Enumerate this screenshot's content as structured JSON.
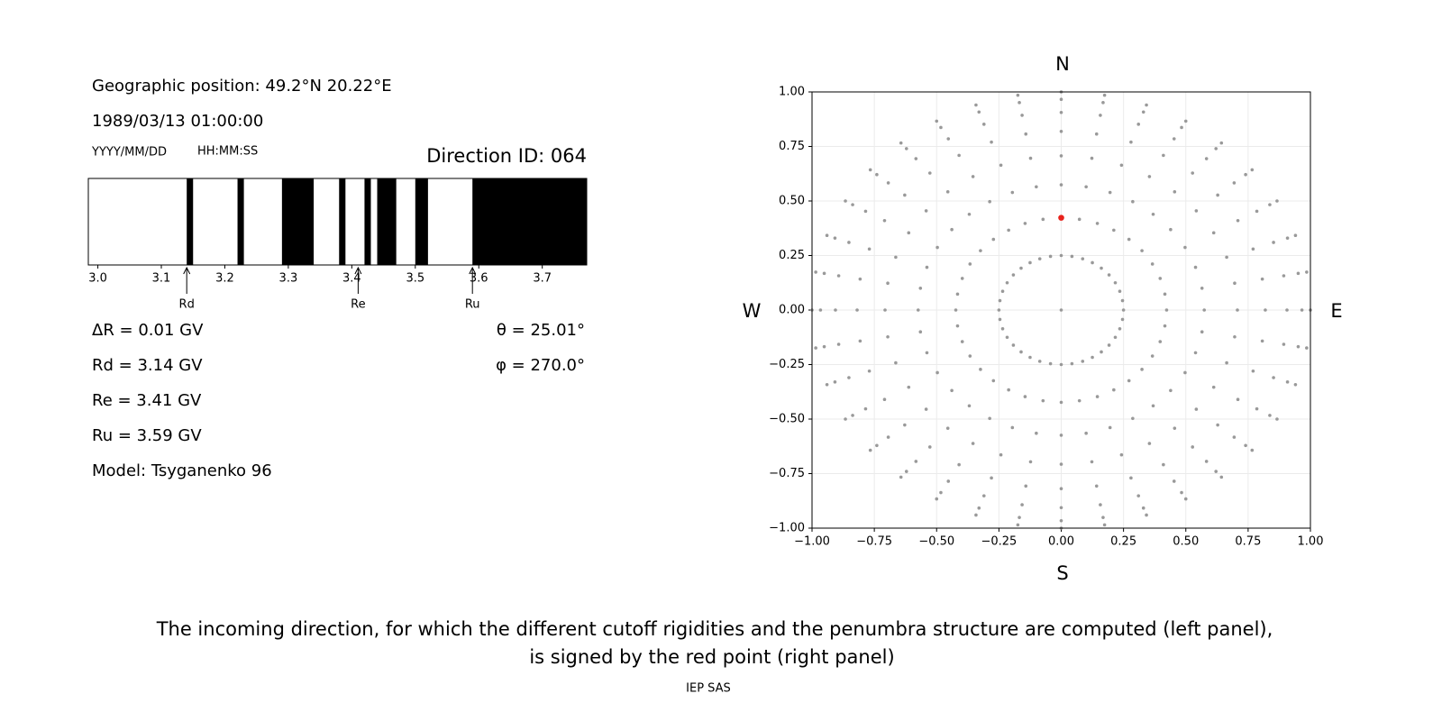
{
  "chart_data": [
    {
      "type": "penumbra",
      "info": {
        "position": "Geographic position: 49.2°N 20.22°E",
        "datetime": "1989/03/13 01:00:00",
        "date_format": "YYYY/MM/DD",
        "time_format": "HH:MM:SS",
        "direction": "Direction ID: 064",
        "delta_r": "ΔR = 0.01 GV",
        "theta": "θ = 25.01°",
        "phi": "φ = 270.0°",
        "rd": "Rd = 3.14 GV",
        "re": "Re = 3.41 GV",
        "ru": "Ru = 3.59 GV",
        "model": "Model: Tsyganenko 96"
      },
      "xlim": [
        2.985,
        3.77
      ],
      "xticks": [
        {
          "value": 3,
          "label": "3.0"
        },
        3.1,
        3.2,
        3.3,
        3.4,
        3.5,
        3.6,
        3.7
      ],
      "bands": [
        [
          3.14,
          3.15
        ],
        [
          3.22,
          3.23
        ],
        [
          3.29,
          3.34
        ],
        [
          3.38,
          3.39
        ],
        [
          3.42,
          3.43
        ],
        [
          3.44,
          3.47
        ],
        [
          3.5,
          3.52
        ],
        [
          3.59,
          3.77
        ]
      ],
      "band_color": "#000000",
      "markers": [
        {
          "label": "Rd",
          "value": 3.14
        },
        {
          "label": "Re",
          "value": 3.41
        },
        {
          "label": "Ru",
          "value": 3.59
        }
      ]
    },
    {
      "type": "scatter",
      "directions": {
        "north": "N",
        "south": "S",
        "west": "W",
        "east": "E"
      },
      "xlim": [
        -1,
        1
      ],
      "ylim": [
        -1,
        1
      ],
      "xticks": [
        {
          "value": -1,
          "label": "−1.00"
        },
        {
          "value": -0.75,
          "label": "−0.75"
        },
        {
          "value": -0.5,
          "label": "−0.50"
        },
        {
          "value": -0.25,
          "label": "−0.25"
        },
        {
          "value": 0,
          "label": "0.00"
        },
        0.25,
        {
          "value": 0.5,
          "label": "0.50"
        },
        0.75,
        {
          "value": 1,
          "label": "1.00"
        }
      ],
      "yticks": [
        {
          "value": -1,
          "label": "−1.00"
        },
        {
          "value": -0.75,
          "label": "−0.75"
        },
        {
          "value": -0.5,
          "label": "−0.50"
        },
        {
          "value": -0.25,
          "label": "−0.25"
        },
        {
          "value": 0,
          "label": "0.00"
        },
        0.25,
        {
          "value": 0.5,
          "label": "0.50"
        },
        0.75,
        {
          "value": 1,
          "label": "1.00"
        }
      ],
      "grid": true,
      "color": "#999999",
      "x": [
        0,
        0,
        0.043,
        0.086,
        0.125,
        0.161,
        0.192,
        0.217,
        0.235,
        0.246,
        0.25,
        0.246,
        0.235,
        0.217,
        0.192,
        0.161,
        0.125,
        0.086,
        0.043,
        0,
        -0.043,
        -0.086,
        -0.125,
        -0.161,
        -0.192,
        -0.217,
        -0.235,
        -0.246,
        -0.25,
        -0.246,
        -0.235,
        -0.217,
        -0.192,
        -0.161,
        -0.125,
        -0.086,
        -0.043,
        0,
        0.073,
        0.145,
        0.211,
        0.272,
        0.324,
        0.366,
        0.397,
        0.416,
        0.423,
        0.416,
        0.397,
        0.366,
        0.324,
        0.272,
        0.211,
        0.145,
        0.073,
        0,
        -0.073,
        -0.145,
        -0.211,
        -0.272,
        -0.324,
        -0.366,
        -0.397,
        -0.416,
        -0.423,
        -0.416,
        -0.397,
        -0.366,
        -0.324,
        -0.272,
        -0.211,
        -0.145,
        -0.073,
        0,
        0.1,
        0.196,
        0.287,
        0.369,
        0.439,
        0.497,
        0.539,
        0.565,
        0.574,
        0.565,
        0.539,
        0.497,
        0.439,
        0.369,
        0.287,
        0.196,
        0.1,
        0,
        -0.1,
        -0.196,
        -0.287,
        -0.369,
        -0.439,
        -0.497,
        -0.539,
        -0.565,
        -0.574,
        -0.565,
        -0.539,
        -0.497,
        -0.439,
        -0.369,
        -0.287,
        -0.196,
        -0.1,
        0,
        0.123,
        0.242,
        0.354,
        0.455,
        0.542,
        0.612,
        0.664,
        0.696,
        0.707,
        0.696,
        0.664,
        0.612,
        0.542,
        0.455,
        0.354,
        0.242,
        0.123,
        0,
        -0.123,
        -0.242,
        -0.354,
        -0.455,
        -0.542,
        -0.612,
        -0.664,
        -0.696,
        -0.707,
        -0.696,
        -0.664,
        -0.612,
        -0.542,
        -0.455,
        -0.354,
        -0.242,
        -0.123,
        0,
        0.142,
        0.28,
        0.41,
        0.527,
        0.628,
        0.709,
        0.77,
        0.807,
        0.819,
        0.807,
        0.77,
        0.709,
        0.628,
        0.527,
        0.41,
        0.28,
        0.142,
        0,
        -0.142,
        -0.28,
        -0.41,
        -0.527,
        -0.628,
        -0.709,
        -0.77,
        -0.807,
        -0.819,
        -0.807,
        -0.77,
        -0.709,
        -0.628,
        -0.527,
        -0.41,
        -0.28,
        -0.142,
        0,
        0.157,
        0.31,
        0.453,
        0.583,
        0.694,
        0.785,
        0.852,
        0.893,
        0.906,
        0.893,
        0.852,
        0.785,
        0.694,
        0.583,
        0.453,
        0.31,
        0.157,
        0,
        -0.157,
        -0.31,
        -0.453,
        -0.583,
        -0.694,
        -0.785,
        -0.852,
        -0.893,
        -0.906,
        -0.893,
        -0.852,
        -0.785,
        -0.694,
        -0.583,
        -0.453,
        -0.31,
        -0.157,
        0,
        0.168,
        0.33,
        0.483,
        0.621,
        0.74,
        0.837,
        0.908,
        0.951,
        0.966,
        0.951,
        0.908,
        0.837,
        0.74,
        0.621,
        0.483,
        0.33,
        0.168,
        0,
        -0.168,
        -0.33,
        -0.483,
        -0.621,
        -0.74,
        -0.837,
        -0.908,
        -0.951,
        -0.966,
        -0.951,
        -0.908,
        -0.837,
        -0.74,
        -0.621,
        -0.483,
        -0.33,
        -0.168,
        0,
        0.174,
        0.342,
        0.5,
        0.643,
        0.766,
        0.866,
        0.94,
        0.985,
        1,
        0.985,
        0.94,
        0.866,
        0.766,
        0.643,
        0.5,
        0.342,
        0.174,
        0,
        -0.174,
        -0.342,
        -0.5,
        -0.643,
        -0.766,
        -0.866,
        -0.94,
        -0.985,
        -1,
        -0.985,
        -0.94,
        -0.866,
        -0.766,
        -0.643,
        -0.5,
        -0.342,
        -0.174
      ],
      "y": [
        0,
        0.25,
        0.246,
        0.235,
        0.217,
        0.192,
        0.161,
        0.125,
        0.086,
        0.043,
        0,
        -0.043,
        -0.086,
        -0.125,
        -0.161,
        -0.192,
        -0.217,
        -0.235,
        -0.246,
        -0.25,
        -0.246,
        -0.235,
        -0.217,
        -0.192,
        -0.161,
        -0.125,
        -0.086,
        -0.043,
        0,
        0.043,
        0.086,
        0.125,
        0.161,
        0.192,
        0.217,
        0.235,
        0.246,
        0.423,
        0.416,
        0.397,
        0.366,
        0.324,
        0.272,
        0.211,
        0.145,
        0.073,
        0,
        -0.073,
        -0.145,
        -0.211,
        -0.272,
        -0.324,
        -0.366,
        -0.397,
        -0.416,
        -0.423,
        -0.416,
        -0.397,
        -0.366,
        -0.324,
        -0.272,
        -0.211,
        -0.145,
        -0.073,
        0,
        0.073,
        0.145,
        0.211,
        0.272,
        0.324,
        0.366,
        0.397,
        0.416,
        0.574,
        0.565,
        0.539,
        0.497,
        0.439,
        0.369,
        0.287,
        0.196,
        0.1,
        0,
        -0.1,
        -0.196,
        -0.287,
        -0.369,
        -0.439,
        -0.497,
        -0.539,
        -0.565,
        -0.574,
        -0.565,
        -0.539,
        -0.497,
        -0.439,
        -0.369,
        -0.287,
        -0.196,
        -0.1,
        0,
        0.1,
        0.196,
        0.287,
        0.369,
        0.439,
        0.497,
        0.539,
        0.565,
        0.707,
        0.696,
        0.664,
        0.612,
        0.542,
        0.455,
        0.354,
        0.242,
        0.123,
        0,
        -0.123,
        -0.242,
        -0.354,
        -0.455,
        -0.542,
        -0.612,
        -0.664,
        -0.696,
        -0.707,
        -0.696,
        -0.664,
        -0.612,
        -0.542,
        -0.455,
        -0.354,
        -0.242,
        -0.123,
        0,
        0.123,
        0.242,
        0.354,
        0.455,
        0.542,
        0.612,
        0.664,
        0.696,
        0.819,
        0.807,
        0.77,
        0.709,
        0.628,
        0.527,
        0.41,
        0.28,
        0.142,
        0,
        -0.142,
        -0.28,
        -0.41,
        -0.527,
        -0.628,
        -0.709,
        -0.77,
        -0.807,
        -0.819,
        -0.807,
        -0.77,
        -0.709,
        -0.628,
        -0.527,
        -0.41,
        -0.28,
        -0.142,
        0,
        0.142,
        0.28,
        0.41,
        0.527,
        0.628,
        0.709,
        0.77,
        0.807,
        0.906,
        0.893,
        0.852,
        0.785,
        0.694,
        0.583,
        0.453,
        0.31,
        0.157,
        0,
        -0.157,
        -0.31,
        -0.453,
        -0.583,
        -0.694,
        -0.785,
        -0.852,
        -0.893,
        -0.906,
        -0.893,
        -0.852,
        -0.785,
        -0.694,
        -0.583,
        -0.453,
        -0.31,
        -0.157,
        0,
        0.157,
        0.31,
        0.453,
        0.583,
        0.694,
        0.785,
        0.852,
        0.893,
        0.966,
        0.951,
        0.908,
        0.837,
        0.74,
        0.621,
        0.483,
        0.33,
        0.168,
        0,
        -0.168,
        -0.33,
        -0.483,
        -0.621,
        -0.74,
        -0.837,
        -0.908,
        -0.951,
        -0.966,
        -0.951,
        -0.908,
        -0.837,
        -0.74,
        -0.621,
        -0.483,
        -0.33,
        -0.168,
        0,
        0.168,
        0.33,
        0.483,
        0.621,
        0.74,
        0.837,
        0.908,
        0.951,
        1,
        0.985,
        0.94,
        0.866,
        0.766,
        0.643,
        0.5,
        0.342,
        0.174,
        0,
        -0.174,
        -0.342,
        -0.5,
        -0.643,
        -0.766,
        -0.866,
        -0.94,
        -0.985,
        -1,
        -0.985,
        -0.94,
        -0.866,
        -0.766,
        -0.643,
        -0.5,
        -0.342,
        -0.174,
        0,
        0.174,
        0.342,
        0.5,
        0.643,
        0.766,
        0.866,
        0.94,
        0.985
      ],
      "highlight": {
        "x": 0,
        "y": 0.423,
        "color": "#e8221c"
      }
    }
  ],
  "caption": [
    "The incoming direction, for which the different cutoff rigidities and the penumbra structure are computed (left panel),",
    "is signed by the red point (right panel)"
  ],
  "footer": "IEP SAS"
}
